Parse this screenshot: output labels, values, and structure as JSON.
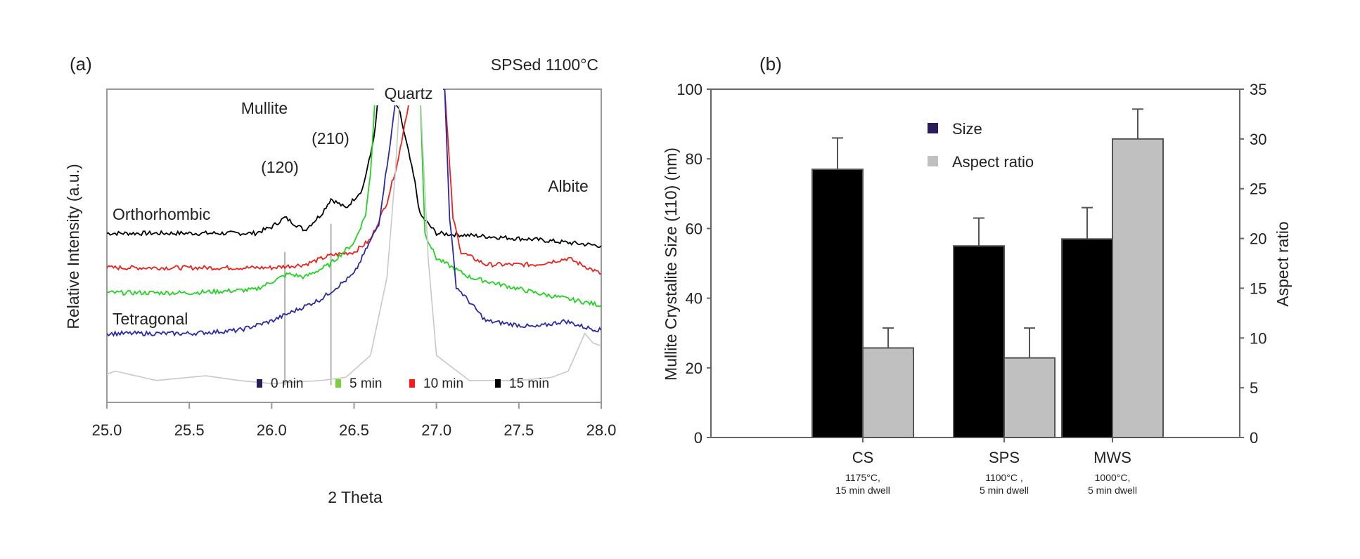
{
  "chart_data": [
    {
      "type": "line",
      "panel_label": "(a)",
      "title": "SPSed 1100°C",
      "xlabel": "2 Theta",
      "ylabel": "Relative Intensity (a.u.)",
      "xlim": [
        25.0,
        28.0
      ],
      "ylim": [
        0,
        100
      ],
      "xticks": [
        "25.0",
        "25.5",
        "26.0",
        "26.5",
        "27.0",
        "27.5",
        "28.0"
      ],
      "grid": false,
      "legend_position": "bottom-right",
      "annotations": {
        "mullite": "Mullite",
        "peak_120": "(120)",
        "peak_210": "(210)",
        "quartz": "Quartz",
        "orthorhombic": "Orthorhombic",
        "tetragonal": "Tetragonal",
        "albite": "Albite"
      },
      "reference_lines_x": [
        26.08,
        26.36
      ],
      "series": [
        {
          "name": "15 min",
          "color": "#000000",
          "points": [
            [
              25.0,
              54
            ],
            [
              25.5,
              54
            ],
            [
              25.9,
              54
            ],
            [
              26.0,
              56
            ],
            [
              26.08,
              59
            ],
            [
              26.2,
              55
            ],
            [
              26.3,
              60
            ],
            [
              26.36,
              65
            ],
            [
              26.45,
              62
            ],
            [
              26.55,
              68
            ],
            [
              26.6,
              79
            ],
            [
              26.63,
              88
            ],
            [
              26.65,
              100
            ],
            [
              26.72,
              100
            ],
            [
              26.78,
              92
            ],
            [
              26.8,
              87
            ],
            [
              26.83,
              80
            ],
            [
              26.87,
              70
            ],
            [
              26.9,
              60
            ],
            [
              27.0,
              54
            ],
            [
              27.3,
              53
            ],
            [
              27.6,
              52
            ],
            [
              28.0,
              50
            ]
          ]
        },
        {
          "name": "10 min",
          "color": "#e8231f",
          "points": [
            [
              25.0,
              43
            ],
            [
              25.5,
              43
            ],
            [
              26.0,
              43
            ],
            [
              26.2,
              44
            ],
            [
              26.36,
              47
            ],
            [
              26.5,
              48
            ],
            [
              26.6,
              52
            ],
            [
              26.7,
              64
            ],
            [
              26.77,
              78
            ],
            [
              26.8,
              87
            ],
            [
              26.85,
              100
            ],
            [
              27.05,
              100
            ],
            [
              27.1,
              59
            ],
            [
              27.15,
              48
            ],
            [
              27.3,
              44
            ],
            [
              27.6,
              44
            ],
            [
              27.8,
              46
            ],
            [
              28.0,
              41
            ]
          ]
        },
        {
          "name": "5 min",
          "color": "#22d322",
          "points": [
            [
              25.0,
              35
            ],
            [
              25.5,
              35
            ],
            [
              25.9,
              36
            ],
            [
              26.1,
              41
            ],
            [
              26.2,
              40
            ],
            [
              26.35,
              44
            ],
            [
              26.5,
              51
            ],
            [
              26.57,
              60
            ],
            [
              26.6,
              73
            ],
            [
              26.63,
              100
            ],
            [
              26.9,
              100
            ],
            [
              26.93,
              54
            ],
            [
              27.0,
              46
            ],
            [
              27.2,
              40
            ],
            [
              27.6,
              35
            ],
            [
              28.0,
              31
            ]
          ]
        },
        {
          "name": "0 min",
          "color": "#2a2aa8",
          "points": [
            [
              25.0,
              22
            ],
            [
              25.5,
              22
            ],
            [
              25.8,
              23
            ],
            [
              26.0,
              26
            ],
            [
              26.3,
              33
            ],
            [
              26.5,
              41
            ],
            [
              26.65,
              57
            ],
            [
              26.73,
              87
            ],
            [
              26.76,
              100
            ],
            [
              27.05,
              100
            ],
            [
              27.08,
              59
            ],
            [
              27.12,
              37
            ],
            [
              27.3,
              26
            ],
            [
              27.6,
              24
            ],
            [
              27.78,
              26
            ],
            [
              27.9,
              24
            ],
            [
              28.0,
              23
            ]
          ]
        },
        {
          "color": "#c8c8c8",
          "points": [
            [
              25.0,
              9
            ],
            [
              25.05,
              10
            ],
            [
              25.3,
              7
            ],
            [
              25.5,
              8
            ],
            [
              25.6,
              8.5
            ],
            [
              25.8,
              7
            ],
            [
              26.0,
              6
            ],
            [
              26.3,
              7
            ],
            [
              26.45,
              8
            ],
            [
              26.6,
              15
            ],
            [
              26.7,
              40
            ],
            [
              26.75,
              73
            ],
            [
              26.78,
              100
            ],
            [
              26.9,
              100
            ],
            [
              26.95,
              46
            ],
            [
              27.0,
              15
            ],
            [
              27.2,
              7
            ],
            [
              27.5,
              7
            ],
            [
              27.7,
              8
            ],
            [
              27.8,
              10
            ],
            [
              27.9,
              22
            ],
            [
              27.95,
              19
            ],
            [
              28.0,
              18
            ]
          ]
        }
      ],
      "legend": [
        {
          "label": "0 min",
          "color": "#2b1a5e"
        },
        {
          "label": "5 min",
          "color": "#7ad03a"
        },
        {
          "label": "10 min",
          "color": "#ff1a1a"
        },
        {
          "label": "15 min",
          "color": "#000000"
        }
      ]
    },
    {
      "type": "bar",
      "panel_label": "(b)",
      "ylabel": "Mullite Crystalite Size (110) (nm)",
      "y2label": "Aspect ratio",
      "ylim": [
        0,
        100
      ],
      "y2lim": [
        0,
        35
      ],
      "yticks": [
        "0",
        "20",
        "40",
        "60",
        "80",
        "100"
      ],
      "y2ticks": [
        "0",
        "5",
        "10",
        "15",
        "20",
        "25",
        "30",
        "35"
      ],
      "grid": false,
      "legend_position": "top-center",
      "categories": [
        "CS",
        "SPS",
        "MWS"
      ],
      "category_sublabels": [
        [
          "1175°C,",
          "15 min dwell"
        ],
        [
          "1100°C ,",
          "5 min dwell"
        ],
        [
          "1000°C,",
          "5 min dwell"
        ]
      ],
      "series": [
        {
          "name": "Size",
          "axis": "left",
          "color": "#000000",
          "legend_color": "#2b1a5e",
          "values": [
            77,
            55,
            57
          ],
          "error_upper": [
            86,
            63,
            66
          ]
        },
        {
          "name": "Aspect ratio",
          "axis": "right",
          "color": "#c0c0c0",
          "legend_color": "#c0c0c0",
          "values": [
            9,
            8,
            30
          ],
          "error_upper": [
            11,
            11,
            33
          ]
        }
      ]
    }
  ]
}
